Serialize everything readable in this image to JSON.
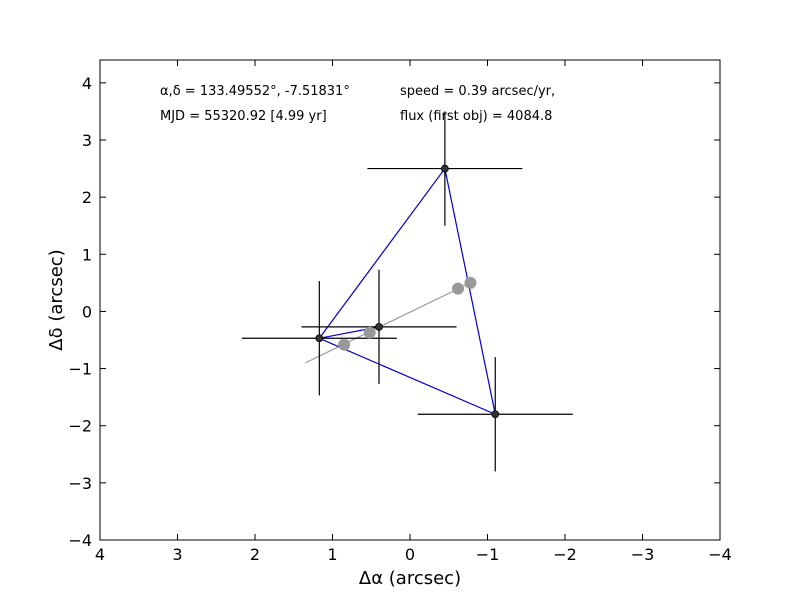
{
  "chart_data": {
    "type": "scatter",
    "xlabel": "Δα (arcsec)",
    "ylabel": "Δδ (arcsec)",
    "xlim": [
      4,
      -4
    ],
    "ylim": [
      -4,
      4.4
    ],
    "x_ticks": [
      4,
      3,
      2,
      1,
      0,
      -1,
      -2,
      -3,
      -4
    ],
    "x_tick_labels": [
      "4",
      "3",
      "2",
      "1",
      "0",
      "−1",
      "−2",
      "−3",
      "−4"
    ],
    "y_ticks": [
      -4,
      -3,
      -2,
      -1,
      0,
      1,
      2,
      3,
      4
    ],
    "y_tick_labels": [
      "−4",
      "−3",
      "−2",
      "−1",
      "0",
      "1",
      "2",
      "3",
      "4"
    ],
    "grid": false,
    "annotations": {
      "coords": "α,δ = 133.49552°, -7.51831°",
      "mjd": "MJD = 55320.92 [4.99 yr]",
      "speed": "speed = 0.39 arcsec/yr,",
      "flux": "flux (first obj) = 4084.8"
    },
    "series": [
      {
        "style": "measured-points-with-errorbars",
        "color": "#000000",
        "line_color": "#0000cc",
        "points": [
          {
            "x": 1.17,
            "y": -0.47,
            "xerr": 1.0,
            "yerr": 1.0
          },
          {
            "x": 0.4,
            "y": -0.27,
            "xerr": 1.0,
            "yerr": 1.0
          },
          {
            "x": -0.45,
            "y": 2.5,
            "xerr": 1.0,
            "yerr": 1.0
          },
          {
            "x": -1.1,
            "y": -1.8,
            "xerr": 1.0,
            "yerr": 1.0
          }
        ],
        "path_order": [
          1,
          0,
          2,
          3,
          0
        ]
      },
      {
        "style": "fitted-motion",
        "color": "#999999",
        "line": {
          "x": [
            1.35,
            -0.78
          ],
          "y": [
            -0.9,
            0.5
          ]
        },
        "points": [
          {
            "x": 0.85,
            "y": -0.58
          },
          {
            "x": 0.52,
            "y": -0.37
          },
          {
            "x": -0.62,
            "y": 0.4
          },
          {
            "x": -0.78,
            "y": 0.5
          }
        ]
      }
    ]
  }
}
